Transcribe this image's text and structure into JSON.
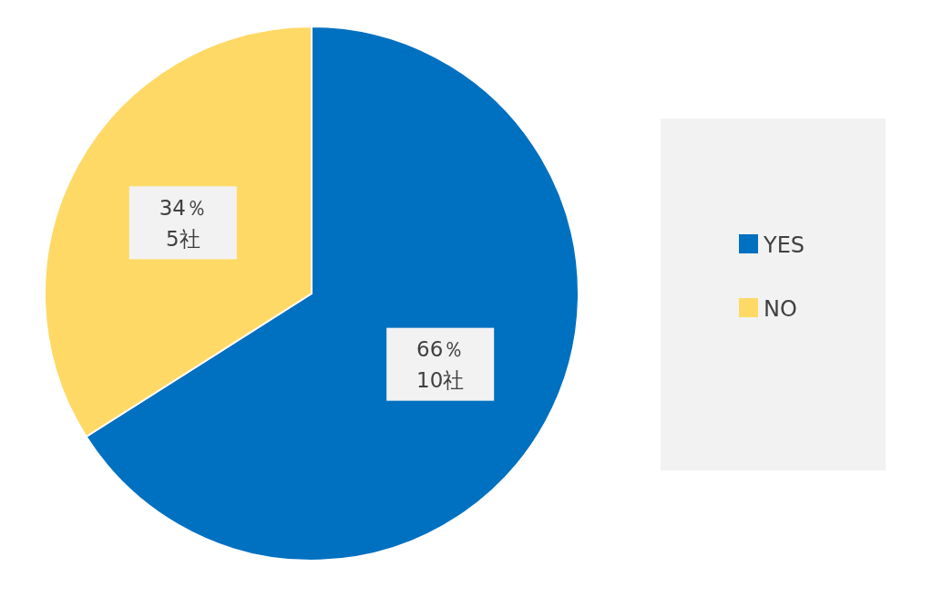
{
  "chart_data": {
    "type": "pie",
    "categories": [
      "YES",
      "NO"
    ],
    "values": [
      66,
      34
    ],
    "colors": [
      "#0070c0",
      "#ffd966"
    ],
    "value_labels": [
      "66％\n10社",
      "34％\n5社"
    ],
    "legend": "right"
  }
}
